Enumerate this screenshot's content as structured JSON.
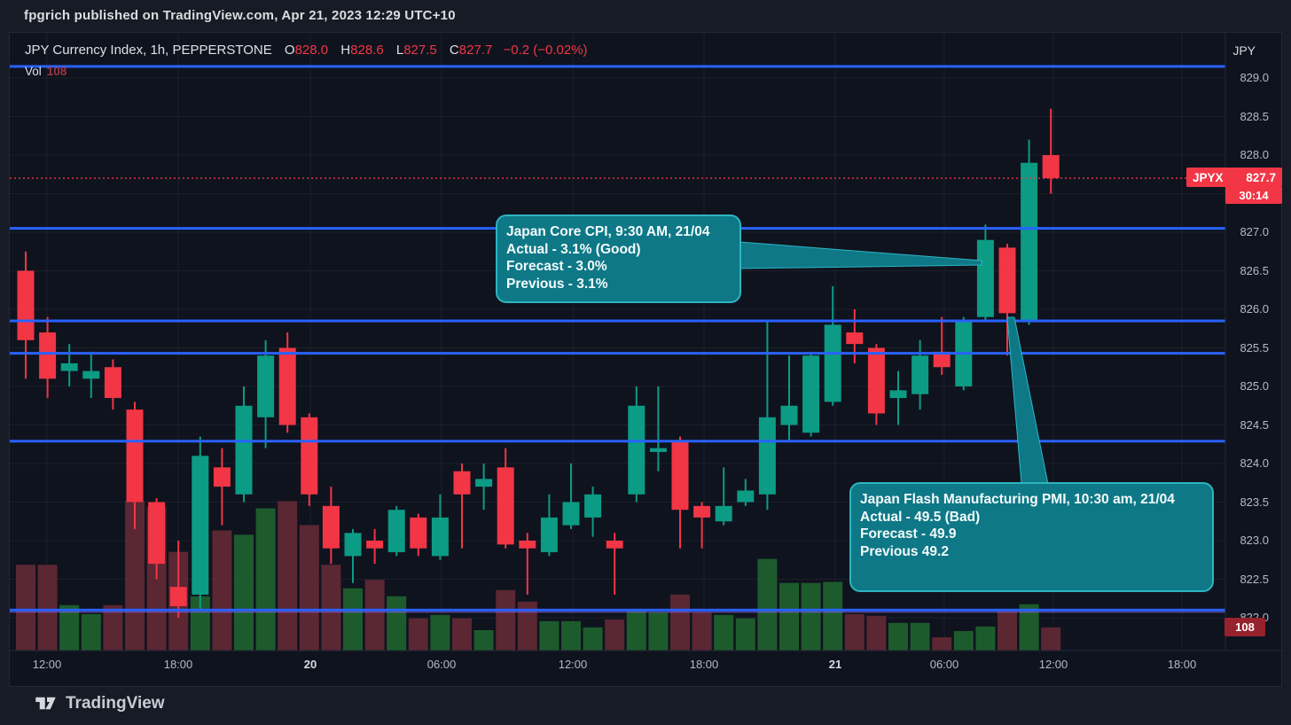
{
  "banner": {
    "text": "fpgrich published on TradingView.com, Apr 21, 2023 12:29 UTC+10"
  },
  "header": {
    "symbol_title": "JPY Currency Index, 1h, PEPPERSTONE",
    "ohlc": {
      "o_label": "O",
      "o": "828.0",
      "h_label": "H",
      "h": "828.6",
      "l_label": "L",
      "l": "827.5",
      "c_label": "C",
      "c": "827.7",
      "change": "−0.2 (−0.02%)"
    },
    "vol_label": "Vol",
    "vol_value": "108"
  },
  "price_axis": {
    "currency": "JPY",
    "labels": [
      {
        "text": "829.0",
        "price": 829.0
      },
      {
        "text": "828.5",
        "price": 828.5
      },
      {
        "text": "828.0",
        "price": 828.0
      },
      {
        "text": "827.0",
        "price": 827.0
      },
      {
        "text": "826.5",
        "price": 826.5
      },
      {
        "text": "826.0",
        "price": 826.0
      },
      {
        "text": "825.5",
        "price": 825.5
      },
      {
        "text": "825.0",
        "price": 825.0
      },
      {
        "text": "824.5",
        "price": 824.5
      },
      {
        "text": "824.0",
        "price": 824.0
      },
      {
        "text": "823.5",
        "price": 823.5
      },
      {
        "text": "823.0",
        "price": 823.0
      },
      {
        "text": "822.5",
        "price": 822.5
      },
      {
        "text": "822.0",
        "price": 822.0
      }
    ],
    "price_tag": {
      "symbol": "JPYX",
      "price": "827.7",
      "countdown": "30:14"
    },
    "volume_tag": "108"
  },
  "time_axis": {
    "labels": [
      {
        "text": "12:00",
        "x": 52,
        "bold": false
      },
      {
        "text": "18:00",
        "x": 200,
        "bold": false
      },
      {
        "text": "20",
        "x": 349,
        "bold": true
      },
      {
        "text": "06:00",
        "x": 497,
        "bold": false
      },
      {
        "text": "12:00",
        "x": 645,
        "bold": false
      },
      {
        "text": "18:00",
        "x": 793,
        "bold": false
      },
      {
        "text": "21",
        "x": 941,
        "bold": true
      },
      {
        "text": "06:00",
        "x": 1064,
        "bold": false
      },
      {
        "text": "12:00",
        "x": 1187,
        "bold": false
      },
      {
        "text": "18:00",
        "x": 1332,
        "bold": false
      }
    ]
  },
  "callouts": [
    {
      "lines": [
        "Japan Core CPI, 9:30 AM, 21/04",
        "Actual - 3.1% (Good)",
        "Forecast - 3.0%",
        "Previous - 3.1%"
      ]
    },
    {
      "lines": [
        "Japan Flash Manufacturing PMI, 10:30 am, 21/04",
        "Actual - 49.5 (Bad)",
        "Forecast - 49.9",
        "Previous 49.2"
      ]
    }
  ],
  "watermark": {
    "brand": "TradingView"
  },
  "colors": {
    "up": "#0c9b85",
    "down": "#f23645",
    "vol_up": "#1d5b2d",
    "vol_down": "#5a2733",
    "level_line": "#2962ff",
    "price_line": "#f23645",
    "callout_fill": "#0e7887",
    "callout_border": "#2eb4c1"
  },
  "chart_data": {
    "type": "candlestick",
    "title": "JPY Currency Index",
    "interval": "1h",
    "exchange": "PEPPERSTONE",
    "symbol_code": "JPYX",
    "last_price": 827.7,
    "change": -0.2,
    "change_pct": -0.02,
    "current_volume": 108,
    "ylabel": "JPY",
    "ylim": [
      821.6,
      829.5
    ],
    "grid": true,
    "horizontal_levels": [
      829.15,
      827.05,
      825.85,
      825.43,
      824.29,
      822.1
    ],
    "price_line_level": 827.7,
    "candles_format": [
      "open",
      "high",
      "low",
      "close",
      "volume"
    ],
    "candles": [
      [
        826.5,
        826.75,
        825.1,
        825.6,
        400
      ],
      [
        825.7,
        825.9,
        824.85,
        825.1,
        400
      ],
      [
        825.2,
        825.55,
        825.0,
        825.3,
        212
      ],
      [
        825.1,
        825.45,
        824.85,
        825.2,
        170
      ],
      [
        825.25,
        825.35,
        824.7,
        824.85,
        212
      ],
      [
        824.7,
        824.8,
        823.15,
        823.5,
        697
      ],
      [
        823.5,
        823.55,
        822.5,
        822.7,
        668
      ],
      [
        822.4,
        823.0,
        822.0,
        822.15,
        460
      ],
      [
        822.3,
        824.35,
        822.1,
        824.1,
        253
      ],
      [
        823.95,
        824.2,
        823.2,
        823.7,
        560
      ],
      [
        823.6,
        825.0,
        823.5,
        824.75,
        540
      ],
      [
        824.6,
        825.6,
        824.2,
        825.4,
        663
      ],
      [
        825.5,
        825.7,
        824.4,
        824.5,
        697
      ],
      [
        824.6,
        824.65,
        823.45,
        823.6,
        585
      ],
      [
        823.45,
        823.7,
        822.7,
        822.9,
        400
      ],
      [
        822.8,
        823.15,
        822.45,
        823.1,
        290
      ],
      [
        823.0,
        823.15,
        822.7,
        822.9,
        330
      ],
      [
        822.85,
        823.45,
        822.8,
        823.4,
        253
      ],
      [
        823.3,
        823.35,
        822.8,
        822.9,
        150
      ],
      [
        822.8,
        823.6,
        822.75,
        823.3,
        166
      ],
      [
        823.9,
        824.0,
        822.9,
        823.6,
        150
      ],
      [
        823.7,
        824.0,
        823.4,
        823.8,
        95
      ],
      [
        823.95,
        824.2,
        822.9,
        822.95,
        282
      ],
      [
        823.0,
        823.1,
        822.3,
        822.9,
        228
      ],
      [
        822.85,
        823.6,
        822.8,
        823.3,
        137
      ],
      [
        823.2,
        824.0,
        823.15,
        823.5,
        137
      ],
      [
        823.3,
        823.7,
        823.05,
        823.6,
        108
      ],
      [
        823.0,
        823.1,
        822.3,
        822.9,
        145
      ],
      [
        823.6,
        825.0,
        823.5,
        824.75,
        187
      ],
      [
        824.15,
        825.0,
        823.9,
        824.2,
        178
      ],
      [
        824.3,
        824.35,
        822.9,
        823.4,
        261
      ],
      [
        823.45,
        823.5,
        822.9,
        823.3,
        178
      ],
      [
        823.25,
        823.95,
        823.2,
        823.45,
        166
      ],
      [
        823.5,
        823.8,
        823.45,
        823.65,
        150
      ],
      [
        823.6,
        825.85,
        823.4,
        824.6,
        427
      ],
      [
        824.5,
        825.4,
        824.3,
        824.75,
        315
      ],
      [
        824.4,
        825.45,
        824.35,
        825.4,
        315
      ],
      [
        824.8,
        826.3,
        824.75,
        825.8,
        320
      ],
      [
        825.7,
        826.0,
        825.3,
        825.55,
        170
      ],
      [
        825.5,
        825.55,
        824.5,
        824.65,
        162
      ],
      [
        824.85,
        825.2,
        824.5,
        824.95,
        129
      ],
      [
        824.9,
        825.6,
        824.7,
        825.4,
        129
      ],
      [
        825.45,
        825.9,
        825.15,
        825.25,
        62
      ],
      [
        825.0,
        825.9,
        824.95,
        825.85,
        91
      ],
      [
        825.9,
        827.1,
        825.85,
        826.9,
        112
      ],
      [
        826.8,
        826.85,
        825.4,
        825.95,
        187
      ],
      [
        825.85,
        828.2,
        825.8,
        827.9,
        216
      ],
      [
        828.0,
        828.6,
        827.5,
        827.7,
        108
      ]
    ],
    "events": [
      {
        "name": "Japan Core CPI",
        "time": "9:30 AM, 21/04",
        "actual": "3.1%",
        "sentiment": "Good",
        "forecast": "3.0%",
        "previous": "3.1%"
      },
      {
        "name": "Japan Flash Manufacturing PMI",
        "time": "10:30 am, 21/04",
        "actual": "49.5",
        "sentiment": "Bad",
        "forecast": "49.9",
        "previous": "49.2"
      }
    ]
  }
}
